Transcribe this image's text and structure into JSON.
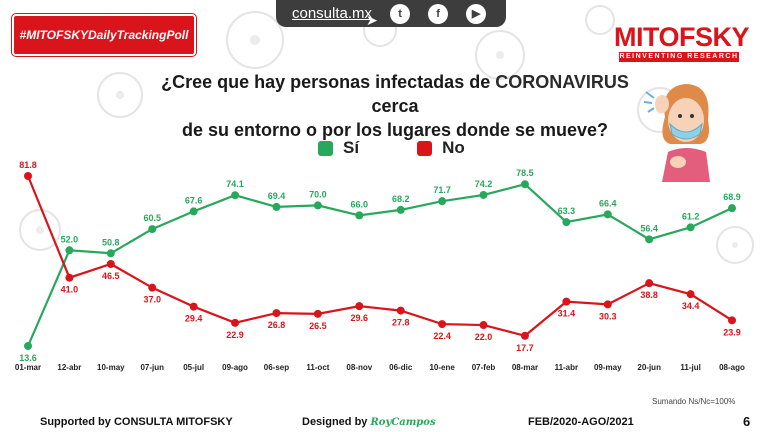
{
  "header": {
    "tag": "#MITOFSKYDailyTrackingPoll",
    "site": "consulta.mx",
    "brand": "MITOFSKY",
    "brand_sub": "REINVENTING RESEARCH",
    "social": [
      {
        "icon": "twitter-icon",
        "glyph": "t"
      },
      {
        "icon": "facebook-icon",
        "glyph": "f"
      },
      {
        "icon": "youtube-icon",
        "glyph": "▶"
      }
    ]
  },
  "question": {
    "line1_pre": "¿Cree que hay personas infectadas de ",
    "line1_hl": "CORONAVIRUS",
    "line1_post": " cerca",
    "line2": "de su entorno o por los lugares donde se mueve?"
  },
  "colors": {
    "si": "#27a85b",
    "no": "#d9141b",
    "red": "#d9141b"
  },
  "chart_data": {
    "type": "line",
    "title": "¿Cree que hay personas infectadas de CORONAVIRUS cerca de su entorno o por los lugares donde se mueve?",
    "categories": [
      "01-mar",
      "12-abr",
      "10-may",
      "07-jun",
      "05-jul",
      "09-ago",
      "06-sep",
      "11-oct",
      "08-nov",
      "06-dic",
      "10-ene",
      "07-feb",
      "08-mar",
      "11-abr",
      "09-may",
      "20-jun",
      "11-jul",
      "08-ago"
    ],
    "series": [
      {
        "name": "Sí",
        "color": "#27a85b",
        "values": [
          13.6,
          52.0,
          50.8,
          60.5,
          67.6,
          74.1,
          69.4,
          70.0,
          66.0,
          68.2,
          71.7,
          74.2,
          78.5,
          63.3,
          66.4,
          56.4,
          61.2,
          68.9
        ]
      },
      {
        "name": "No",
        "color": "#d9141b",
        "values": [
          81.8,
          41.0,
          46.5,
          37.0,
          29.4,
          22.9,
          26.8,
          26.5,
          29.6,
          27.8,
          22.4,
          22.0,
          17.7,
          31.4,
          30.3,
          38.8,
          34.4,
          23.9
        ]
      }
    ],
    "ylim": [
      0,
      100
    ],
    "xlabel": "",
    "ylabel": "",
    "grid": false
  },
  "footer": {
    "supported": "Supported by  CONSULTA  MITOFSKY",
    "designed": "Designed by",
    "signature": "RoyCampos",
    "period": "FEB/2020-AGO/2021",
    "note": "Sumando Ns/Nc=100%",
    "page": "6"
  }
}
